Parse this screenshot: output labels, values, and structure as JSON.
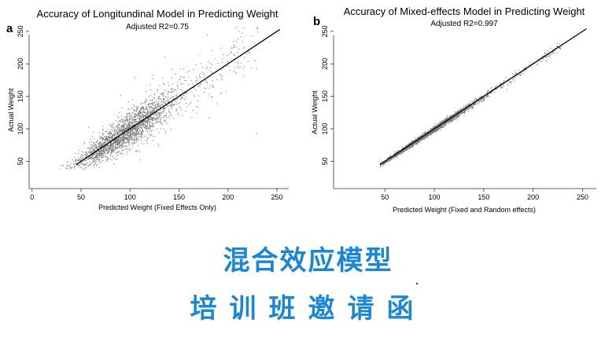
{
  "chart_data": [
    {
      "type": "scatter",
      "panel_label": "a",
      "title": "Accuracy of Longitundinal Model in Predicting Weight",
      "subtitle": "Adjusted R2=0.75",
      "xlabel": "Predicted Weight (Fixed Effects Only)",
      "ylabel": "Actual Weight",
      "xlim": [
        -3,
        262
      ],
      "ylim": [
        8,
        262
      ],
      "xticks": [
        0,
        50,
        100,
        150,
        200,
        250
      ],
      "yticks": [
        50,
        100,
        150,
        200,
        250
      ],
      "fit_line": {
        "x": [
          45,
          253
        ],
        "y": [
          45,
          253
        ]
      },
      "spread": "wide",
      "point_color": "#7a7a7a",
      "line_color": "#000000"
    },
    {
      "type": "scatter",
      "panel_label": "b",
      "title": "Accuracy of Mixed-effects Model in Predicting Weight",
      "subtitle": "Adjusted R2=0.997",
      "xlabel": "Predicted Weight (Fixed and Random effects)",
      "ylabel": "Actual Weight",
      "xlim": [
        -2,
        264
      ],
      "ylim": [
        8,
        262
      ],
      "xticks": [
        50,
        100,
        150,
        200,
        250
      ],
      "yticks": [
        50,
        100,
        150,
        200,
        250
      ],
      "fit_line": {
        "x": [
          45,
          254
        ],
        "y": [
          45,
          254
        ]
      },
      "spread": "tight",
      "point_color": "#7a7a7a",
      "line_color": "#000000"
    }
  ],
  "captions": {
    "line1": "混合效应模型",
    "line2": "培训班邀请函"
  }
}
